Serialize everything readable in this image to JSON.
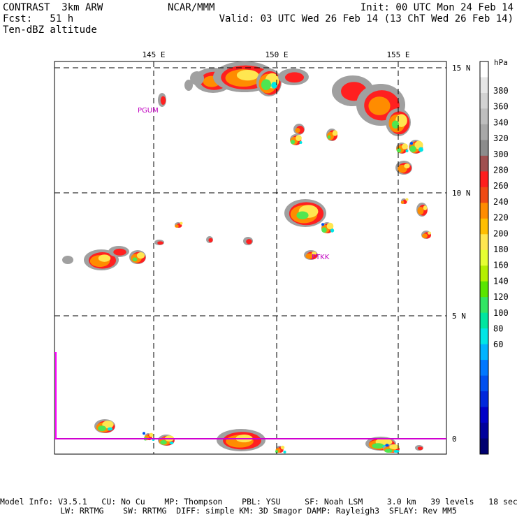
{
  "header": {
    "model_line": "CONTRAST  3km ARW",
    "forecast_line": "Fcst:   51 h",
    "field_line": "Ten-dBZ altitude",
    "center": "NCAR/MMM",
    "init": "Init: 00 UTC Mon 24 Feb 14",
    "valid": "Valid: 03 UTC Wed 26 Feb 14 (13 ChT Wed 26 Feb 14)"
  },
  "map": {
    "lon_labels": [
      "145 E",
      "150 E",
      "155 E"
    ],
    "lat_labels": [
      "15 N",
      "10 N",
      "5 N",
      "0"
    ],
    "stations": [
      {
        "id": "PGUM"
      },
      {
        "id": "PTKK"
      }
    ]
  },
  "colorbar": {
    "unit": "hPa",
    "labels": [
      "380",
      "360",
      "340",
      "320",
      "300",
      "280",
      "260",
      "240",
      "220",
      "200",
      "180",
      "160",
      "140",
      "120",
      "100",
      "80",
      "60"
    ],
    "colors": [
      "#ffffff",
      "#e6e6e6",
      "#d2d2d2",
      "#bebebe",
      "#a8a8a8",
      "#8c8c8c",
      "#a05050",
      "#ff1e1e",
      "#f04a14",
      "#ff8c00",
      "#ffbe00",
      "#ffe650",
      "#e6ff32",
      "#b4f000",
      "#5ae600",
      "#32e664",
      "#00e6a0",
      "#00e6e6",
      "#00b4ff",
      "#0078ff",
      "#0050f0",
      "#0028dc",
      "#0000c8",
      "#00009c",
      "#000070"
    ]
  },
  "footer": {
    "line1": "Model Info: V3.5.1   CU: No Cu    MP: Thompson    PBL: YSU     SF: Noah LSM     3.0 km   39 levels   18 sec",
    "line2": "LW: RRTMG    SW: RRTMG  DIFF: simple KM: 3D Smagor DAMP: Rayleigh3  SFLAY: Rev MM5"
  }
}
